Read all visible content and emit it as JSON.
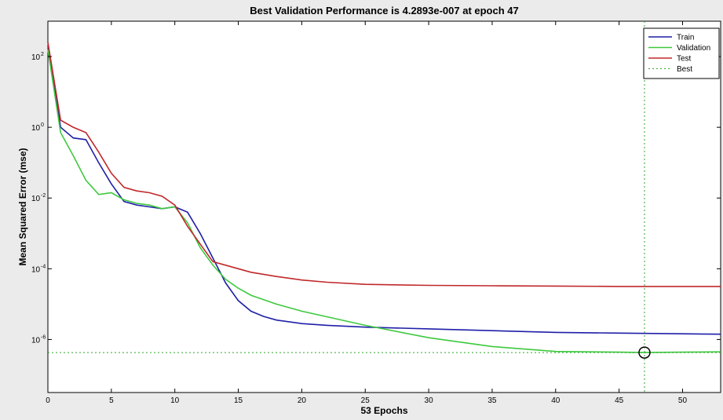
{
  "chart_data": {
    "type": "line",
    "title": "Best Validation Performance is 4.2893e-007 at epoch 47",
    "xlabel": "53 Epochs",
    "ylabel": "Mean Squared Error  (mse)",
    "xlim": [
      0,
      53
    ],
    "ylim_log10": [
      -7.5,
      3.0
    ],
    "yscale": "log",
    "x_ticks": [
      0,
      5,
      10,
      15,
      20,
      25,
      30,
      35,
      40,
      45,
      50
    ],
    "y_ticks": [
      {
        "base": "10",
        "exp": "2",
        "log10": 2
      },
      {
        "base": "10",
        "exp": "0",
        "log10": 0
      },
      {
        "base": "10",
        "exp": "-2",
        "log10": -2
      },
      {
        "base": "10",
        "exp": "-4",
        "log10": -4
      },
      {
        "base": "10",
        "exp": "-6",
        "log10": -6
      }
    ],
    "grid": false,
    "legend_position": "top-right",
    "colors": {
      "train": "#1f1fa8",
      "validation": "#3dc93d",
      "test": "#c0282b",
      "best": "#2ea82e"
    },
    "series": [
      {
        "name": "Train",
        "x": [
          0,
          1,
          2,
          3,
          4,
          5,
          6,
          7,
          8,
          9,
          10,
          11,
          12,
          13,
          14,
          15,
          16,
          17,
          18,
          20,
          22,
          25,
          30,
          35,
          40,
          45,
          50,
          53
        ],
        "log10_y": [
          2.3,
          0.0,
          -0.3,
          -0.35,
          -1.0,
          -1.6,
          -2.1,
          -2.2,
          -2.25,
          -2.3,
          -2.25,
          -2.4,
          -3.0,
          -3.7,
          -4.4,
          -4.9,
          -5.2,
          -5.35,
          -5.45,
          -5.55,
          -5.6,
          -5.65,
          -5.7,
          -5.75,
          -5.8,
          -5.82,
          -5.84,
          -5.85
        ]
      },
      {
        "name": "Validation",
        "x": [
          0,
          1,
          2,
          3,
          4,
          5,
          6,
          7,
          8,
          9,
          10,
          11,
          12,
          13,
          14,
          15,
          16,
          18,
          20,
          25,
          30,
          35,
          40,
          45,
          47,
          50,
          53
        ],
        "log10_y": [
          2.2,
          -0.15,
          -0.8,
          -1.5,
          -1.9,
          -1.85,
          -2.05,
          -2.15,
          -2.2,
          -2.3,
          -2.25,
          -2.7,
          -3.4,
          -3.9,
          -4.3,
          -4.55,
          -4.75,
          -5.0,
          -5.2,
          -5.6,
          -5.95,
          -6.2,
          -6.34,
          -6.36,
          -6.37,
          -6.36,
          -6.35
        ]
      },
      {
        "name": "Test",
        "x": [
          0,
          1,
          2,
          3,
          4,
          5,
          6,
          7,
          8,
          9,
          10,
          11,
          12,
          13,
          14,
          15,
          16,
          18,
          20,
          22,
          25,
          30,
          35,
          40,
          45,
          50,
          53
        ],
        "log10_y": [
          2.4,
          0.2,
          0.0,
          -0.15,
          -0.7,
          -1.3,
          -1.7,
          -1.8,
          -1.85,
          -1.95,
          -2.2,
          -2.8,
          -3.3,
          -3.8,
          -3.9,
          -4.0,
          -4.1,
          -4.22,
          -4.32,
          -4.38,
          -4.44,
          -4.47,
          -4.48,
          -4.49,
          -4.5,
          -4.5,
          -4.5
        ]
      },
      {
        "name": "Best",
        "x": [
          0,
          53
        ],
        "log10_y": [
          -6.37,
          -6.37
        ],
        "vertical_x": 47
      }
    ],
    "best_point": {
      "epoch": 47,
      "log10_y": -6.37
    }
  }
}
